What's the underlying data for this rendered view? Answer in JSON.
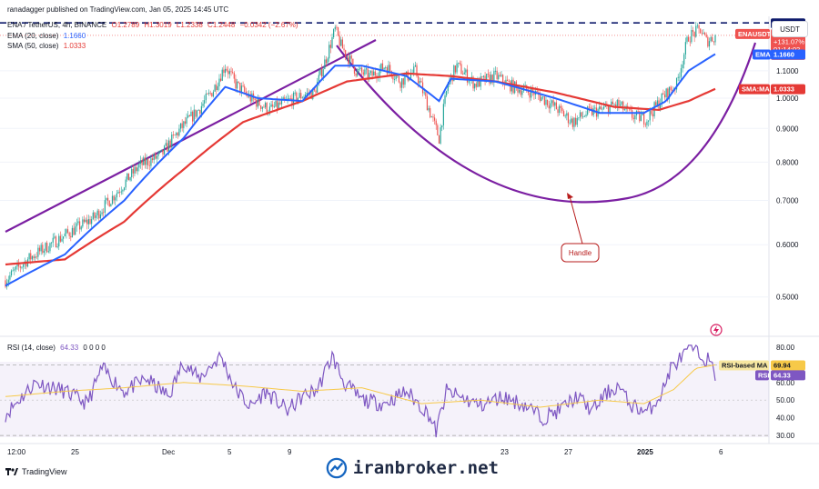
{
  "header": {
    "publisher": "ranadagger published on TradingView.com, Jan 05, 2025 14:45 UTC",
    "symbol": "ENA / TetherUS, 4h, BINANCE",
    "ohlc": {
      "o": "O1.2789",
      "h": "H1.3019",
      "l": "L1.2338",
      "c": "C1.2448",
      "chg": "−0.0342 (−2.67%)"
    },
    "ema_label": "EMA (20, close)",
    "ema_value": "1.1660",
    "sma_label": "SMA (50, close)",
    "sma_value": "1.0333",
    "rsi_label": "RSI (14, close)",
    "rsi_value": "64.33",
    "rsi_zeros": "0 0 0 0"
  },
  "currency": "USDT",
  "price_axis": [
    "1.3000",
    "1.1000",
    "1.0000",
    "0.9000",
    "0.8000",
    "0.7000",
    "0.6000",
    "0.5000"
  ],
  "rsi_axis": [
    "80.00",
    "60.00",
    "50.00",
    "40.00",
    "30.00"
  ],
  "time_axis": [
    "12:00",
    "25",
    "Dec",
    "5",
    "9",
    "23",
    "27",
    "2025",
    "6"
  ],
  "tags": {
    "resistance": "1.3000",
    "symbol_tag": "ENAUSDT",
    "last_price": "1.2448",
    "pct": "+131.07%",
    "timer": "01:14:02",
    "ema": "EMA",
    "ema_val": "1.1660",
    "sma": "SMA:MA",
    "sma_val": "1.0333",
    "rsi_ma": "RSI-based MA",
    "rsi_ma_val": "69.94",
    "rsi": "RSI",
    "rsi_val": "64.33"
  },
  "annotation": "Handle",
  "brand": "TradingView",
  "watermark": "iranbroker.net",
  "colors": {
    "up": "#26a69a",
    "down": "#ef5350",
    "ema": "#2962ff",
    "sma": "#e53935",
    "trend": "#7b1fa2",
    "rsi": "#7e57c2",
    "rsima": "#f7c948"
  },
  "chart_data": {
    "type": "candlestick",
    "price_scale": {
      "min": 0.45,
      "max": 1.33,
      "ticks": [
        0.5,
        0.6,
        0.7,
        0.8,
        0.9,
        1.0,
        1.1,
        1.3
      ]
    },
    "rsi_scale": {
      "min": 28,
      "max": 82,
      "levels": [
        30,
        70
      ]
    },
    "resistance": 1.3,
    "close_anchors": [
      [
        0,
        0.53
      ],
      [
        15,
        0.57
      ],
      [
        30,
        0.6
      ],
      [
        45,
        0.63
      ],
      [
        60,
        0.66
      ],
      [
        75,
        0.72
      ],
      [
        90,
        0.79
      ],
      [
        105,
        0.82
      ],
      [
        118,
        0.9
      ],
      [
        130,
        0.96
      ],
      [
        140,
        1.03
      ],
      [
        148,
        1.12
      ],
      [
        155,
        1.05
      ],
      [
        165,
        1.0
      ],
      [
        178,
        0.96
      ],
      [
        190,
        0.99
      ],
      [
        200,
        1.01
      ],
      [
        208,
        1.02
      ],
      [
        216,
        1.15
      ],
      [
        222,
        1.27
      ],
      [
        226,
        1.2
      ],
      [
        236,
        1.1
      ],
      [
        246,
        1.08
      ],
      [
        256,
        1.12
      ],
      [
        266,
        1.06
      ],
      [
        276,
        1.1
      ],
      [
        286,
        0.95
      ],
      [
        292,
        0.87
      ],
      [
        298,
        1.05
      ],
      [
        304,
        1.12
      ],
      [
        316,
        1.05
      ],
      [
        330,
        1.08
      ],
      [
        342,
        1.04
      ],
      [
        356,
        1.02
      ],
      [
        370,
        0.97
      ],
      [
        382,
        0.92
      ],
      [
        392,
        0.95
      ],
      [
        402,
        0.96
      ],
      [
        412,
        0.98
      ],
      [
        422,
        0.94
      ],
      [
        432,
        0.93
      ],
      [
        442,
        1.0
      ],
      [
        452,
        1.05
      ],
      [
        460,
        1.24
      ],
      [
        468,
        1.27
      ],
      [
        472,
        1.22
      ],
      [
        478,
        1.24
      ]
    ],
    "ema20_anchors": [
      [
        0,
        0.52
      ],
      [
        40,
        0.58
      ],
      [
        80,
        0.7
      ],
      [
        120,
        0.87
      ],
      [
        148,
        1.04
      ],
      [
        170,
        1.0
      ],
      [
        200,
        0.99
      ],
      [
        222,
        1.12
      ],
      [
        240,
        1.12
      ],
      [
        270,
        1.08
      ],
      [
        292,
        0.99
      ],
      [
        300,
        1.07
      ],
      [
        330,
        1.06
      ],
      [
        370,
        1.0
      ],
      [
        400,
        0.95
      ],
      [
        430,
        0.95
      ],
      [
        445,
        0.99
      ],
      [
        460,
        1.1
      ],
      [
        478,
        1.166
      ]
    ],
    "sma50_anchors": [
      [
        0,
        0.56
      ],
      [
        40,
        0.57
      ],
      [
        80,
        0.65
      ],
      [
        120,
        0.78
      ],
      [
        160,
        0.92
      ],
      [
        200,
        0.99
      ],
      [
        230,
        1.06
      ],
      [
        270,
        1.09
      ],
      [
        300,
        1.08
      ],
      [
        330,
        1.06
      ],
      [
        370,
        1.02
      ],
      [
        410,
        0.97
      ],
      [
        440,
        0.96
      ],
      [
        460,
        0.99
      ],
      [
        478,
        1.033
      ]
    ],
    "rsi_anchors": [
      [
        0,
        42
      ],
      [
        20,
        60
      ],
      [
        40,
        55
      ],
      [
        55,
        48
      ],
      [
        65,
        68
      ],
      [
        80,
        55
      ],
      [
        95,
        62
      ],
      [
        110,
        52
      ],
      [
        120,
        72
      ],
      [
        130,
        62
      ],
      [
        145,
        75
      ],
      [
        155,
        56
      ],
      [
        165,
        46
      ],
      [
        175,
        55
      ],
      [
        190,
        44
      ],
      [
        200,
        52
      ],
      [
        210,
        56
      ],
      [
        220,
        75
      ],
      [
        228,
        60
      ],
      [
        240,
        50
      ],
      [
        255,
        48
      ],
      [
        270,
        55
      ],
      [
        285,
        42
      ],
      [
        290,
        32
      ],
      [
        297,
        55
      ],
      [
        305,
        52
      ],
      [
        320,
        47
      ],
      [
        335,
        52
      ],
      [
        350,
        47
      ],
      [
        362,
        40
      ],
      [
        372,
        44
      ],
      [
        385,
        52
      ],
      [
        395,
        44
      ],
      [
        405,
        54
      ],
      [
        413,
        58
      ],
      [
        420,
        48
      ],
      [
        432,
        43
      ],
      [
        442,
        54
      ],
      [
        448,
        68
      ],
      [
        454,
        73
      ],
      [
        462,
        80
      ],
      [
        468,
        75
      ],
      [
        473,
        73
      ],
      [
        478,
        64.33
      ]
    ],
    "rsima_anchors": [
      [
        0,
        52
      ],
      [
        40,
        55
      ],
      [
        80,
        57
      ],
      [
        120,
        60
      ],
      [
        160,
        58
      ],
      [
        200,
        55
      ],
      [
        240,
        57
      ],
      [
        280,
        48
      ],
      [
        320,
        50
      ],
      [
        360,
        46
      ],
      [
        400,
        50
      ],
      [
        430,
        48
      ],
      [
        450,
        56
      ],
      [
        465,
        68
      ],
      [
        478,
        69.94
      ]
    ]
  }
}
